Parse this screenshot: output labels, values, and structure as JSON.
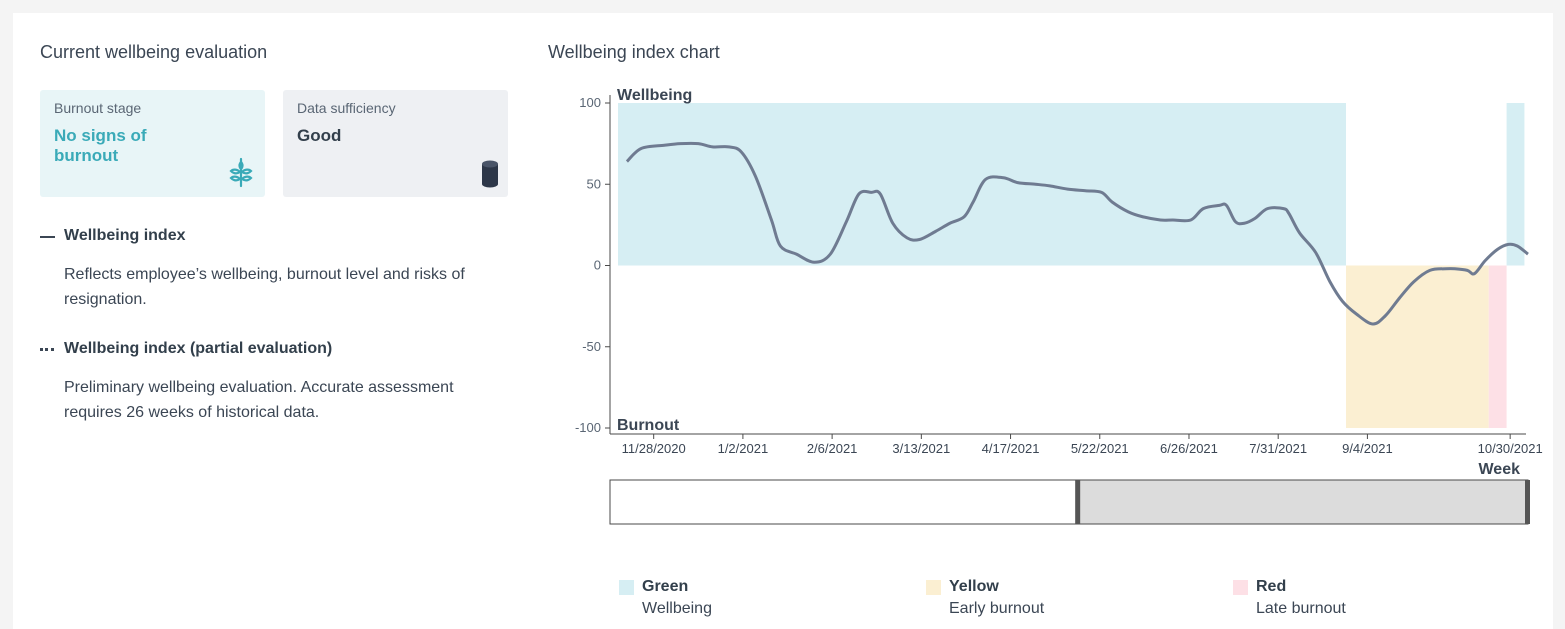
{
  "left": {
    "title": "Current wellbeing evaluation",
    "burnout_card": {
      "label": "Burnout stage",
      "value": "No signs of burnout",
      "icon": "sprout-icon"
    },
    "data_card": {
      "label": "Data sufficiency",
      "value": "Good",
      "icon": "database-icon"
    },
    "legend": [
      {
        "label": "Wellbeing index",
        "description": "Reflects employee’s wellbeing, burnout level and risks of resignation."
      },
      {
        "label": "Wellbeing index (partial evaluation)",
        "description": "Preliminary wellbeing evaluation. Accurate assessment requires 26 weeks of historical data."
      }
    ]
  },
  "right": {
    "title": "Wellbeing index chart"
  },
  "colors": {
    "green_zone": "#d6eef3",
    "yellow_zone": "#fbefd2",
    "red_zone": "#fde0e6",
    "line": "#6f7b91",
    "accent": "#3aaab8"
  },
  "chart_data": {
    "type": "line",
    "top_label": "Wellbeing",
    "bottom_label": "Burnout",
    "xlabel": "Week",
    "ylim": [
      -100,
      100
    ],
    "yticks": [
      100,
      50,
      0,
      -50,
      -100
    ],
    "x_tick_labels": [
      "11/28/2020",
      "1/2/2021",
      "2/6/2021",
      "3/13/2021",
      "4/17/2021",
      "5/22/2021",
      "6/26/2021",
      "7/31/2021",
      "9/4/2021",
      "10/30/2021"
    ],
    "x_tick_weeks": [
      2,
      7,
      12,
      17,
      22,
      27,
      32,
      37,
      42,
      50
    ],
    "x_range_weeks": [
      0,
      51
    ],
    "series": [
      {
        "values": [
          [
            0.5,
            64
          ],
          [
            1.3,
            72
          ],
          [
            2.6,
            74
          ],
          [
            3.5,
            75
          ],
          [
            4.5,
            75
          ],
          [
            5.3,
            73
          ],
          [
            6.2,
            73
          ],
          [
            6.9,
            70
          ],
          [
            7.7,
            55
          ],
          [
            8.6,
            28
          ],
          [
            9.1,
            12
          ],
          [
            10,
            7
          ],
          [
            11,
            2
          ],
          [
            11.9,
            7
          ],
          [
            12.8,
            27
          ],
          [
            13.5,
            44
          ],
          [
            14.2,
            45
          ],
          [
            14.7,
            44
          ],
          [
            15.4,
            26
          ],
          [
            16.2,
            17
          ],
          [
            16.9,
            16
          ],
          [
            17.8,
            21
          ],
          [
            18.6,
            26
          ],
          [
            19.4,
            30
          ],
          [
            19.9,
            39
          ],
          [
            20.6,
            53
          ],
          [
            21.6,
            54
          ],
          [
            22.4,
            51
          ],
          [
            23.4,
            50
          ],
          [
            24.2,
            49
          ],
          [
            25.2,
            47
          ],
          [
            26.2,
            46
          ],
          [
            27.1,
            45
          ],
          [
            27.7,
            39
          ],
          [
            28.6,
            33
          ],
          [
            29.4,
            30
          ],
          [
            30.4,
            28
          ],
          [
            31.1,
            28
          ],
          [
            32.1,
            28
          ],
          [
            32.8,
            35
          ],
          [
            33.7,
            37
          ],
          [
            34.1,
            37
          ],
          [
            34.6,
            27
          ],
          [
            35.1,
            26
          ],
          [
            35.7,
            29
          ],
          [
            36.4,
            35
          ],
          [
            37.3,
            35
          ],
          [
            37.6,
            32
          ],
          [
            38.2,
            20
          ],
          [
            39.1,
            8
          ],
          [
            39.9,
            -10
          ],
          [
            40.6,
            -22
          ],
          [
            41.4,
            -30
          ],
          [
            42.3,
            -36
          ],
          [
            43,
            -31
          ],
          [
            43.8,
            -20
          ],
          [
            44.6,
            -10
          ],
          [
            45.5,
            -3
          ],
          [
            46.4,
            -2
          ],
          [
            46.9,
            -2
          ],
          [
            47.6,
            -3
          ],
          [
            48,
            -5
          ],
          [
            48.6,
            3
          ],
          [
            49.3,
            10
          ],
          [
            49.9,
            13
          ],
          [
            50.4,
            12
          ],
          [
            51,
            7
          ]
        ]
      }
    ],
    "zones": [
      {
        "zone": "green",
        "from_week": 0,
        "to_week": 40.8,
        "y_from": 0,
        "y_to": 100
      },
      {
        "zone": "yellow",
        "from_week": 40.8,
        "to_week": 48.8,
        "y_from": -100,
        "y_to": 0
      },
      {
        "zone": "red",
        "from_week": 48.8,
        "to_week": 49.8,
        "y_from": -100,
        "y_to": 0
      },
      {
        "zone": "green",
        "from_week": 49.8,
        "to_week": 50.8,
        "y_from": 0,
        "y_to": 100
      }
    ],
    "range_selector": {
      "from_fraction": 0.51,
      "to_fraction": 1.0
    }
  },
  "chart_legend": [
    {
      "name": "Green",
      "sub": "Wellbeing",
      "color": "#d6eef3"
    },
    {
      "name": "Yellow",
      "sub": "Early burnout",
      "color": "#fbefd2"
    },
    {
      "name": "Red",
      "sub": "Late burnout",
      "color": "#fde0e6"
    }
  ]
}
